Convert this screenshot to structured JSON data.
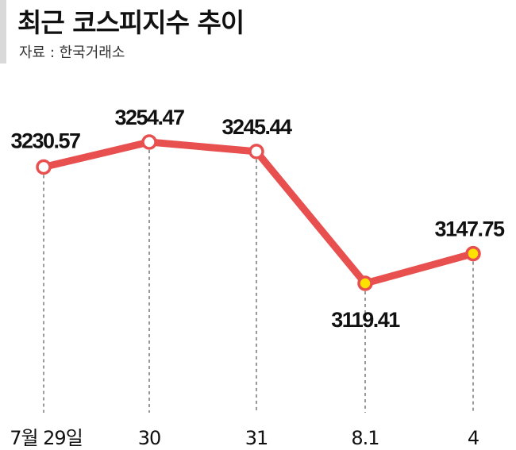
{
  "header": {
    "title": "최근 코스피지수 추이",
    "source": "자료 : 한국거래소"
  },
  "chart_data": {
    "type": "line",
    "title": "최근 코스피지수 추이",
    "xlabel": "",
    "ylabel": "",
    "categories": [
      "7월 29일",
      "30",
      "31",
      "8.1",
      "4"
    ],
    "series": [
      {
        "values": [
          3230.57,
          3254.47,
          3245.44,
          3119.41,
          3147.75
        ]
      }
    ],
    "data_labels": [
      "3230.57",
      "3254.47",
      "3245.44",
      "3119.41",
      "3147.75"
    ],
    "highlighted_points": [
      "8.1",
      "4"
    ],
    "grid": false,
    "legend": "none",
    "colors": {
      "line": "#e85050",
      "marker_fill": "#ffffff",
      "highlight_fill": "#ffe100",
      "guide": "#555555",
      "text": "#111111"
    }
  }
}
